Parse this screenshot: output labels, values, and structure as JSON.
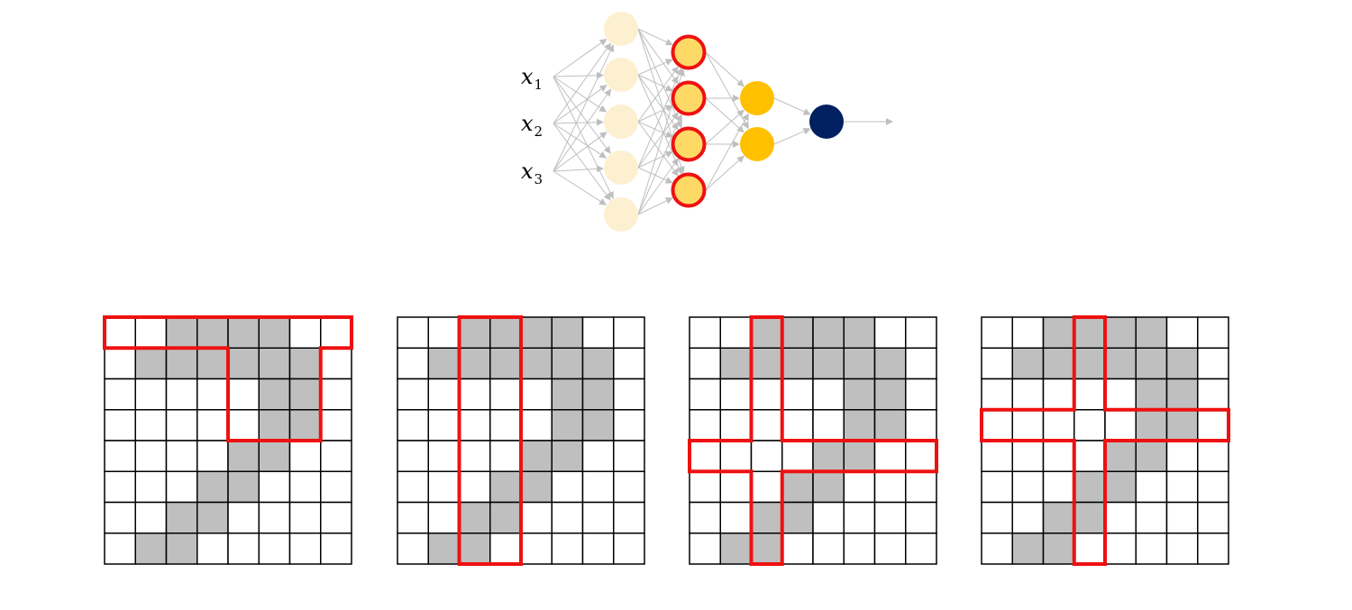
{
  "network": {
    "inputs": [
      {
        "var": "x",
        "sub": "1"
      },
      {
        "var": "x",
        "sub": "2"
      },
      {
        "var": "x",
        "sub": "3"
      }
    ],
    "layers": [
      {
        "role": "hidden-1",
        "nodes": 5,
        "color": "#fdf0d0",
        "highlighted": false
      },
      {
        "role": "hidden-2",
        "nodes": 4,
        "color": "#ffd966",
        "highlighted": true,
        "outline": "#ee1111"
      },
      {
        "role": "hidden-3",
        "nodes": 2,
        "color": "#ffc000",
        "highlighted": false
      },
      {
        "role": "output",
        "nodes": 1,
        "color": "#002060",
        "highlighted": false
      }
    ],
    "edge_color": "#bfbfbf"
  },
  "grid": {
    "rows": 8,
    "cols": 8,
    "filled_color": "#bfbfbf",
    "line_color": "#000000",
    "highlight_color": "#ee1111",
    "filled_cells": [
      [
        0,
        2
      ],
      [
        0,
        3
      ],
      [
        0,
        4
      ],
      [
        0,
        5
      ],
      [
        1,
        1
      ],
      [
        1,
        2
      ],
      [
        1,
        3
      ],
      [
        1,
        4
      ],
      [
        1,
        5
      ],
      [
        1,
        6
      ],
      [
        2,
        5
      ],
      [
        2,
        6
      ],
      [
        3,
        5
      ],
      [
        3,
        6
      ],
      [
        4,
        4
      ],
      [
        4,
        5
      ],
      [
        5,
        3
      ],
      [
        5,
        4
      ],
      [
        6,
        2
      ],
      [
        6,
        3
      ],
      [
        7,
        1
      ],
      [
        7,
        2
      ]
    ]
  },
  "panels": [
    {
      "name": "panel-1",
      "highlight_cells": [
        [
          0,
          0
        ],
        [
          0,
          1
        ],
        [
          0,
          2
        ],
        [
          0,
          3
        ],
        [
          0,
          4
        ],
        [
          0,
          5
        ],
        [
          0,
          6
        ],
        [
          0,
          7
        ],
        [
          1,
          4
        ],
        [
          1,
          5
        ],
        [
          1,
          6
        ],
        [
          2,
          4
        ],
        [
          2,
          5
        ],
        [
          2,
          6
        ],
        [
          3,
          4
        ],
        [
          3,
          5
        ],
        [
          3,
          6
        ]
      ]
    },
    {
      "name": "panel-2",
      "highlight_cells": [
        [
          0,
          2
        ],
        [
          0,
          3
        ],
        [
          1,
          2
        ],
        [
          1,
          3
        ],
        [
          2,
          2
        ],
        [
          2,
          3
        ],
        [
          3,
          2
        ],
        [
          3,
          3
        ],
        [
          4,
          2
        ],
        [
          4,
          3
        ],
        [
          5,
          2
        ],
        [
          5,
          3
        ],
        [
          6,
          2
        ],
        [
          6,
          3
        ],
        [
          7,
          2
        ],
        [
          7,
          3
        ]
      ]
    },
    {
      "name": "panel-3",
      "highlight_cells": [
        [
          0,
          2
        ],
        [
          1,
          2
        ],
        [
          2,
          2
        ],
        [
          3,
          2
        ],
        [
          4,
          0
        ],
        [
          4,
          1
        ],
        [
          4,
          2
        ],
        [
          4,
          3
        ],
        [
          4,
          4
        ],
        [
          4,
          5
        ],
        [
          4,
          6
        ],
        [
          4,
          7
        ],
        [
          5,
          2
        ],
        [
          6,
          2
        ],
        [
          7,
          2
        ]
      ]
    },
    {
      "name": "panel-4",
      "highlight_cells": [
        [
          0,
          3
        ],
        [
          1,
          3
        ],
        [
          2,
          3
        ],
        [
          3,
          0
        ],
        [
          3,
          1
        ],
        [
          3,
          2
        ],
        [
          3,
          3
        ],
        [
          3,
          4
        ],
        [
          3,
          5
        ],
        [
          3,
          6
        ],
        [
          3,
          7
        ],
        [
          4,
          3
        ],
        [
          5,
          3
        ],
        [
          6,
          3
        ],
        [
          7,
          3
        ]
      ]
    }
  ]
}
